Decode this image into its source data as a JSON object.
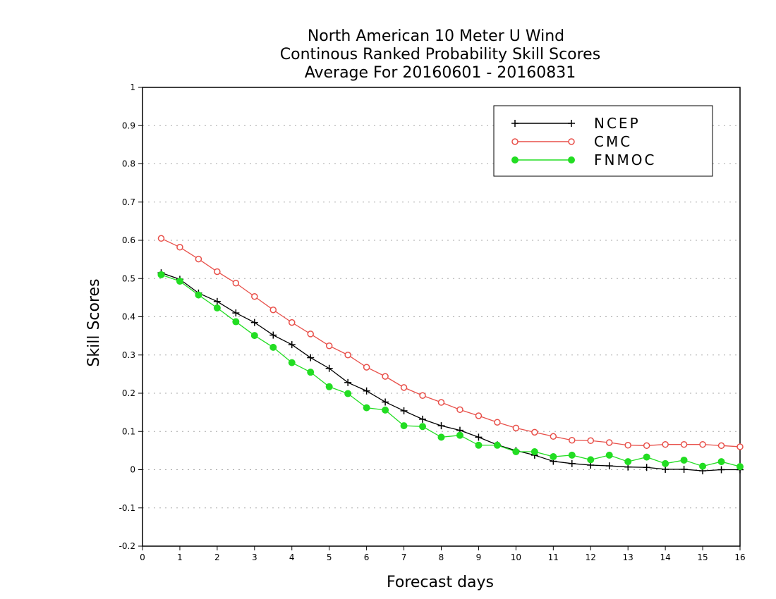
{
  "chart_data": {
    "type": "line",
    "title": [
      "North American 10 Meter U Wind",
      "Continous Ranked Probability Skill Scores",
      "Average For 20160601 - 20160831"
    ],
    "xlabel": "Forecast days",
    "ylabel": "Skill Scores",
    "xlim": [
      0,
      16
    ],
    "ylim": [
      -0.2,
      1
    ],
    "xticks": [
      "0",
      "1",
      "2",
      "3",
      "4",
      "5",
      "6",
      "7",
      "8",
      "9",
      "10",
      "11",
      "12",
      "13",
      "14",
      "15",
      "16"
    ],
    "yticks": [
      "-0.2",
      "-0.1",
      "0",
      "0.1",
      "0.2",
      "0.3",
      "0.4",
      "0.5",
      "0.6",
      "0.7",
      "0.8",
      "0.9",
      "1"
    ],
    "grid": "horizontal dotted",
    "legend_position": "top-right",
    "x": [
      0.5,
      1,
      1.5,
      2,
      2.5,
      3,
      3.5,
      4,
      4.5,
      5,
      5.5,
      6,
      6.5,
      7,
      7.5,
      8,
      8.5,
      9,
      9.5,
      10,
      10.5,
      11,
      11.5,
      12,
      12.5,
      13,
      13.5,
      14,
      14.5,
      15,
      15.5,
      16
    ],
    "series": [
      {
        "name": "NCEP",
        "color": "#000000",
        "marker": "plus",
        "values": [
          0.515,
          0.498,
          0.462,
          0.44,
          0.41,
          0.385,
          0.352,
          0.327,
          0.293,
          0.265,
          0.228,
          0.206,
          0.177,
          0.154,
          0.132,
          0.115,
          0.103,
          0.085,
          0.065,
          0.05,
          0.038,
          0.022,
          0.016,
          0.012,
          0.01,
          0.007,
          0.006,
          0.001,
          0.001,
          -0.003,
          0.0,
          0.0
        ]
      },
      {
        "name": "CMC",
        "color": "#e8504a",
        "marker": "open-circle",
        "values": [
          0.605,
          0.582,
          0.551,
          0.518,
          0.488,
          0.453,
          0.418,
          0.385,
          0.355,
          0.324,
          0.3,
          0.268,
          0.244,
          0.215,
          0.194,
          0.176,
          0.157,
          0.141,
          0.124,
          0.109,
          0.098,
          0.087,
          0.077,
          0.076,
          0.071,
          0.064,
          0.063,
          0.066,
          0.066,
          0.066,
          0.063,
          0.06
        ]
      },
      {
        "name": "FNMOC",
        "color": "#22dd22",
        "marker": "filled-circle",
        "values": [
          0.51,
          0.493,
          0.457,
          0.423,
          0.387,
          0.351,
          0.32,
          0.28,
          0.255,
          0.217,
          0.199,
          0.162,
          0.156,
          0.115,
          0.113,
          0.085,
          0.09,
          0.064,
          0.064,
          0.047,
          0.047,
          0.034,
          0.038,
          0.026,
          0.038,
          0.021,
          0.033,
          0.016,
          0.025,
          0.009,
          0.021,
          0.008
        ]
      }
    ]
  }
}
